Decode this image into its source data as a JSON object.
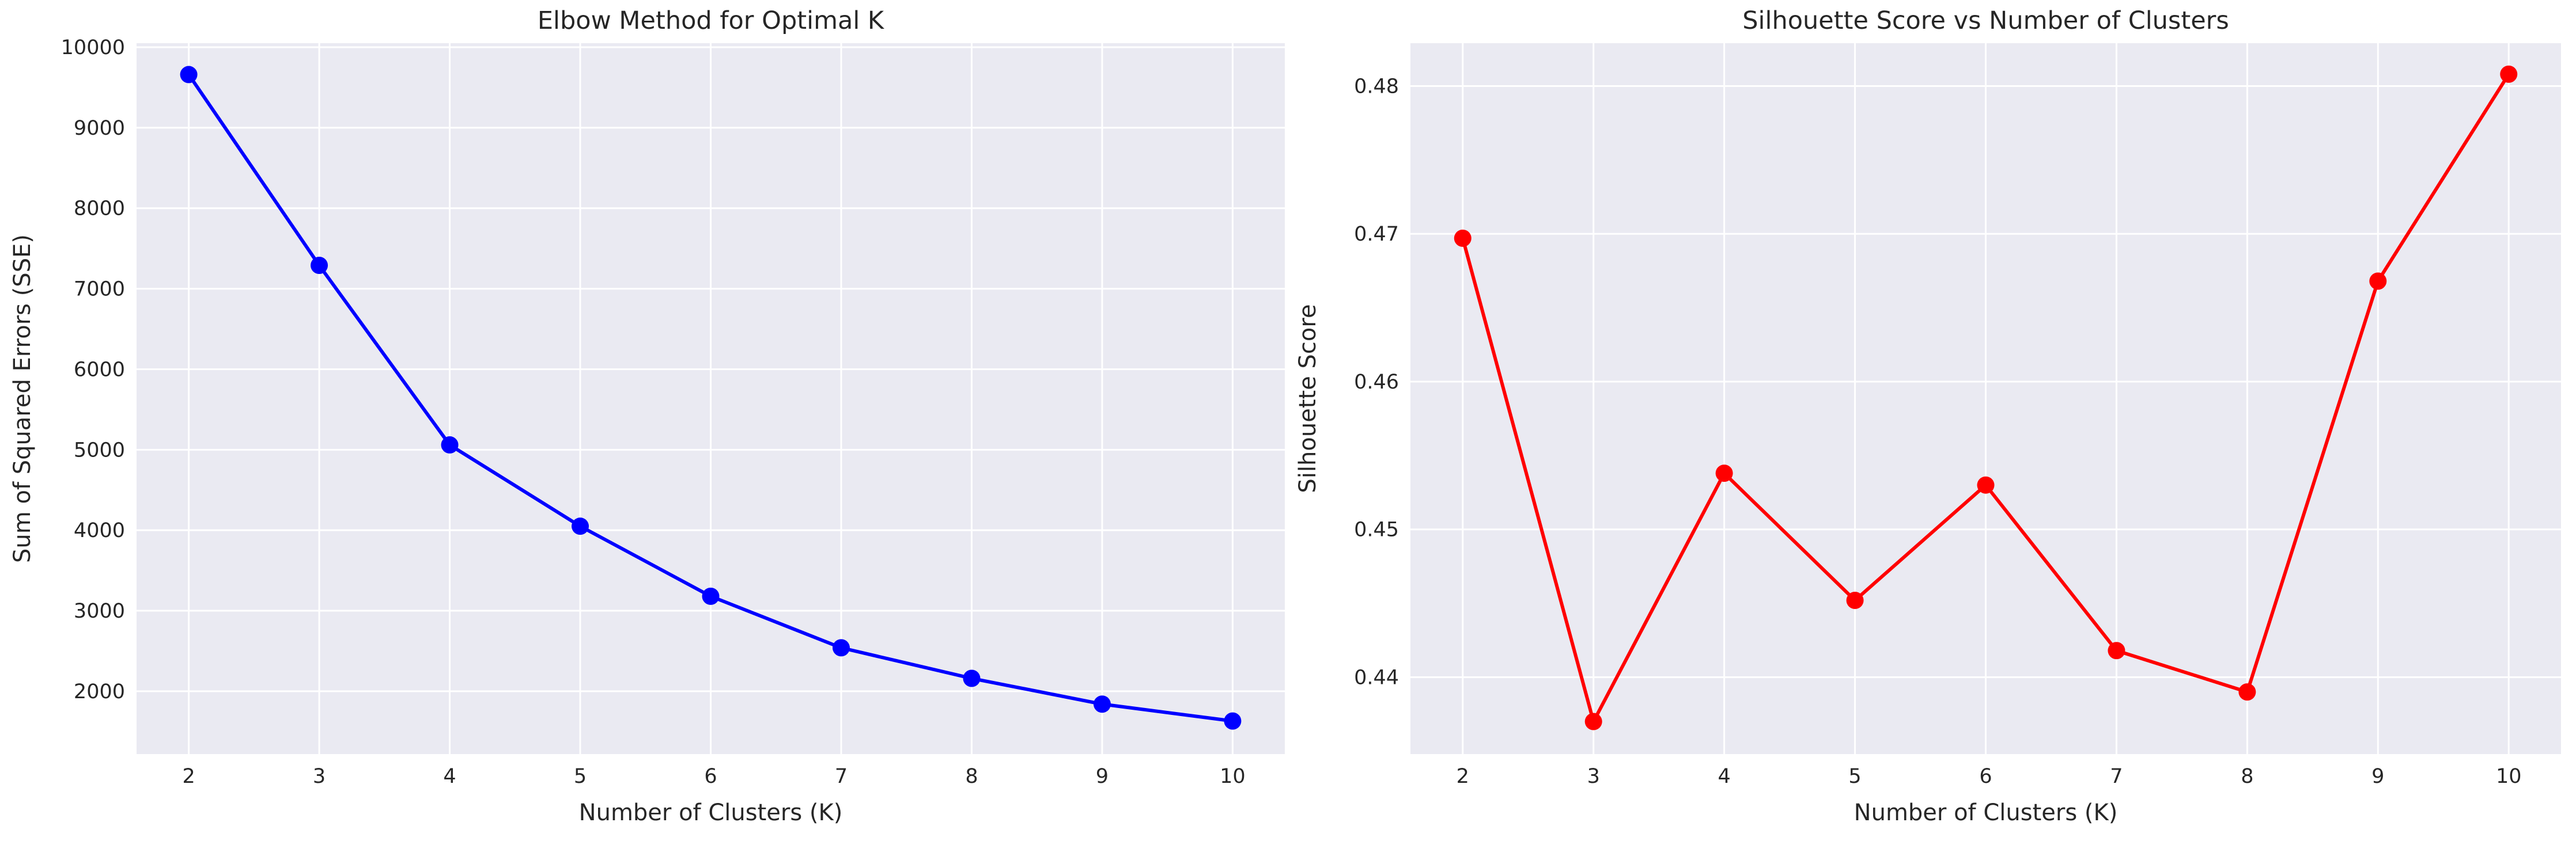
{
  "figure": {
    "background": "#ffffff",
    "plot_background": "#eaeaf2",
    "grid_color": "#ffffff",
    "text_color": "#262626"
  },
  "chart_data": [
    {
      "type": "line",
      "title": "Elbow Method for Optimal K",
      "xlabel": "Number of Clusters (K)",
      "ylabel": "Sum of Squared Errors (SSE)",
      "x": [
        2,
        3,
        4,
        5,
        6,
        7,
        8,
        9,
        10
      ],
      "xticks": [
        2,
        3,
        4,
        5,
        6,
        7,
        8,
        9,
        10
      ],
      "yticks": [
        2000,
        3000,
        4000,
        5000,
        6000,
        7000,
        8000,
        9000,
        10000
      ],
      "xlim": [
        1.6,
        10.4
      ],
      "ylim": [
        1220,
        10050
      ],
      "grid": true,
      "marker": "circle",
      "color": "#0000ff",
      "series": [
        {
          "values": [
            9660,
            7290,
            5060,
            4050,
            3180,
            2540,
            2160,
            1840,
            1630
          ]
        }
      ]
    },
    {
      "type": "line",
      "title": "Silhouette Score vs Number of Clusters",
      "xlabel": "Number of Clusters (K)",
      "ylabel": "Silhouette Score",
      "x": [
        2,
        3,
        4,
        5,
        6,
        7,
        8,
        9,
        10
      ],
      "xticks": [
        2,
        3,
        4,
        5,
        6,
        7,
        8,
        9,
        10
      ],
      "yticks": [
        0.44,
        0.45,
        0.46,
        0.47,
        0.48
      ],
      "xlim": [
        1.6,
        10.4
      ],
      "ylim": [
        0.4348,
        0.4829
      ],
      "grid": true,
      "marker": "circle",
      "color": "#ff0000",
      "series": [
        {
          "values": [
            0.4697,
            0.437,
            0.4538,
            0.4452,
            0.453,
            0.4418,
            0.439,
            0.4668,
            0.4808
          ]
        }
      ]
    }
  ]
}
